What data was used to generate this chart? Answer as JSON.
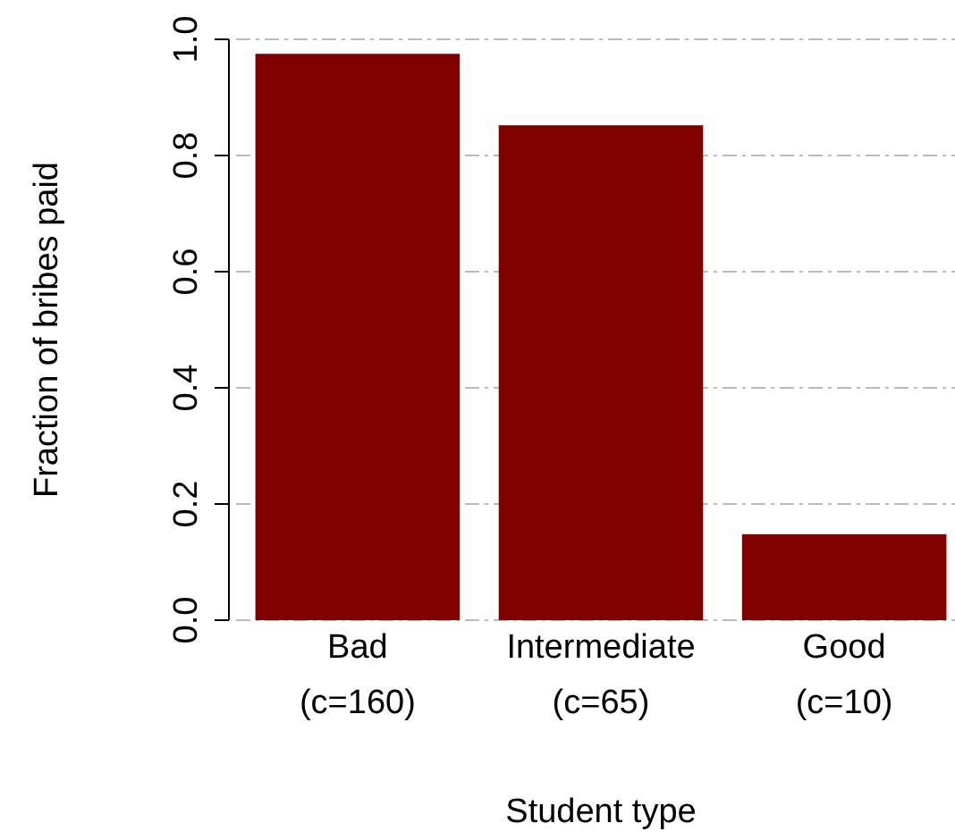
{
  "chart_data": {
    "type": "bar",
    "xlabel": "Student type",
    "ylabel": "Fraction of bribes paid",
    "categories": [
      "Bad\n(c=160)",
      "Intermediate\n(c=65)",
      "Good\n(c=10)"
    ],
    "values": [
      0.975,
      0.852,
      0.148
    ],
    "color": "#800000",
    "ylim": [
      0,
      1
    ],
    "yticks": [
      {
        "value": 0,
        "label": "0.0"
      },
      {
        "value": 0.2,
        "label": "0.2"
      },
      {
        "value": 0.4,
        "label": "0.4"
      },
      {
        "value": 0.6,
        "label": "0.6"
      },
      {
        "value": 0.8,
        "label": "0.8"
      },
      {
        "value": 1,
        "label": "1.0"
      }
    ],
    "grid": "y"
  }
}
